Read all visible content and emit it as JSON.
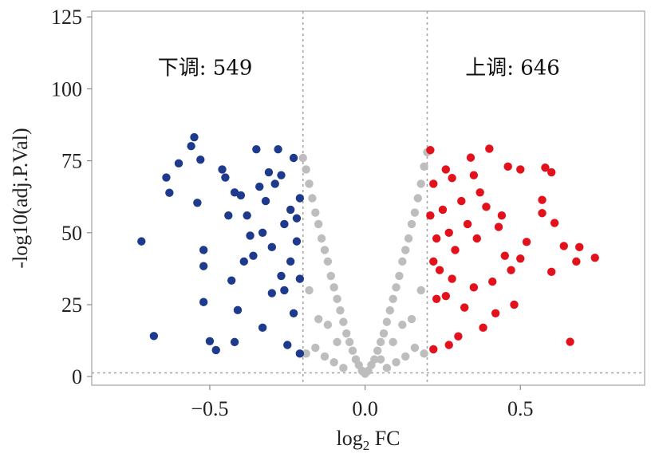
{
  "chart_data": {
    "type": "scatter",
    "title": "",
    "xlabel": {
      "prefix": "log",
      "subscript": "2",
      "suffix": " FC"
    },
    "ylabel": "-log10(adj.P.Val)",
    "xlim": [
      -0.88,
      0.9
    ],
    "ylim": [
      -3,
      127
    ],
    "x_ticks": [
      {
        "value": -0.5,
        "label": "−0.5"
      },
      {
        "value": 0.0,
        "label": "0.0"
      },
      {
        "value": 0.5,
        "label": "0.5"
      }
    ],
    "y_ticks": [
      {
        "value": 0,
        "label": "0"
      },
      {
        "value": 25,
        "label": "25"
      },
      {
        "value": 50,
        "label": "50"
      },
      {
        "value": 75,
        "label": "75"
      },
      {
        "value": 100,
        "label": "100"
      },
      {
        "value": 125,
        "label": "125"
      }
    ],
    "thresholds": {
      "x": [
        -0.2,
        0.2
      ],
      "y": 1.3
    },
    "grid": false,
    "legend": "none",
    "annotations": [
      {
        "text": "下调: 549",
        "x": -0.515,
        "y": 105
      },
      {
        "text": "上调: 646",
        "x": 0.475,
        "y": 105
      }
    ],
    "series": [
      {
        "name": "下调",
        "count": 549,
        "color": "#1d3a8c",
        "points": [
          [
            -0.55,
            83.2
          ],
          [
            -0.72,
            47.0
          ],
          [
            -0.68,
            14.1
          ],
          [
            -0.64,
            69.2
          ],
          [
            -0.63,
            63.9
          ],
          [
            -0.6,
            74.1
          ],
          [
            -0.56,
            80.1
          ],
          [
            -0.54,
            60.4
          ],
          [
            -0.53,
            75.4
          ],
          [
            -0.52,
            44.0
          ],
          [
            -0.52,
            38.4
          ],
          [
            -0.52,
            25.9
          ],
          [
            -0.5,
            12.3
          ],
          [
            -0.48,
            9.2
          ],
          [
            -0.45,
            69.2
          ],
          [
            -0.43,
            33.4
          ],
          [
            -0.42,
            64.0
          ],
          [
            -0.41,
            23.1
          ],
          [
            -0.42,
            12.0
          ],
          [
            -0.38,
            56.0
          ],
          [
            -0.37,
            49.0
          ],
          [
            -0.36,
            42.0
          ],
          [
            -0.35,
            79.0
          ],
          [
            -0.33,
            17.0
          ],
          [
            -0.32,
            61.0
          ],
          [
            -0.31,
            71.0
          ],
          [
            -0.3,
            29.0
          ],
          [
            -0.29,
            67.0
          ],
          [
            -0.28,
            79.0
          ],
          [
            -0.27,
            35.0
          ],
          [
            -0.26,
            53.0
          ],
          [
            -0.25,
            11.0
          ],
          [
            -0.24,
            58.0
          ],
          [
            -0.23,
            76.0
          ],
          [
            -0.23,
            22.0
          ],
          [
            -0.22,
            47.0
          ],
          [
            -0.21,
            62.0
          ],
          [
            -0.21,
            8.0
          ],
          [
            -0.46,
            72.0
          ],
          [
            -0.44,
            56.0
          ],
          [
            -0.4,
            63.0
          ],
          [
            -0.39,
            40.0
          ],
          [
            -0.34,
            66.0
          ],
          [
            -0.3,
            45.0
          ],
          [
            -0.27,
            70.0
          ],
          [
            -0.26,
            30.0
          ],
          [
            -0.24,
            40.0
          ],
          [
            -0.22,
            55.0
          ],
          [
            -0.21,
            34.0
          ],
          [
            -0.33,
            50.0
          ]
        ]
      },
      {
        "name": "上调",
        "count": 646,
        "color": "#e3111b",
        "points": [
          [
            0.21,
            78.7
          ],
          [
            0.34,
            76.1
          ],
          [
            0.4,
            79.2
          ],
          [
            0.46,
            73.0
          ],
          [
            0.5,
            72.0
          ],
          [
            0.58,
            72.6
          ],
          [
            0.6,
            71.0
          ],
          [
            0.57,
            61.4
          ],
          [
            0.61,
            53.4
          ],
          [
            0.57,
            56.8
          ],
          [
            0.64,
            45.4
          ],
          [
            0.68,
            40.0
          ],
          [
            0.74,
            41.3
          ],
          [
            0.69,
            45.0
          ],
          [
            0.6,
            36.4
          ],
          [
            0.52,
            46.8
          ],
          [
            0.5,
            41.0
          ],
          [
            0.47,
            37.0
          ],
          [
            0.48,
            25.0
          ],
          [
            0.42,
            22.0
          ],
          [
            0.38,
            17.0
          ],
          [
            0.35,
            31.0
          ],
          [
            0.66,
            12.1
          ],
          [
            0.27,
            11.0
          ],
          [
            0.22,
            9.5
          ],
          [
            0.3,
            14.0
          ],
          [
            0.33,
            53.0
          ],
          [
            0.37,
            64.0
          ],
          [
            0.28,
            69.0
          ],
          [
            0.25,
            58.0
          ],
          [
            0.23,
            48.0
          ],
          [
            0.24,
            37.0
          ],
          [
            0.26,
            28.0
          ],
          [
            0.29,
            44.0
          ],
          [
            0.31,
            61.0
          ],
          [
            0.36,
            48.0
          ],
          [
            0.39,
            59.0
          ],
          [
            0.43,
            52.0
          ],
          [
            0.45,
            42.0
          ],
          [
            0.22,
            67.0
          ],
          [
            0.26,
            72.0
          ],
          [
            0.21,
            56.0
          ],
          [
            0.23,
            27.0
          ],
          [
            0.28,
            34.0
          ],
          [
            0.32,
            24.0
          ],
          [
            0.41,
            33.0
          ],
          [
            0.44,
            56.0
          ],
          [
            0.35,
            70.0
          ],
          [
            0.22,
            40.0
          ],
          [
            0.27,
            50.0
          ]
        ]
      },
      {
        "name": "",
        "color": "#bdbdbd",
        "points": [
          [
            -0.2,
            76.0
          ],
          [
            -0.19,
            72.0
          ],
          [
            -0.18,
            67.0
          ],
          [
            -0.17,
            62.0
          ],
          [
            -0.16,
            57.0
          ],
          [
            -0.15,
            53.0
          ],
          [
            -0.14,
            48.0
          ],
          [
            -0.13,
            44.0
          ],
          [
            -0.12,
            40.0
          ],
          [
            -0.11,
            35.0
          ],
          [
            -0.1,
            31.0
          ],
          [
            -0.09,
            27.0
          ],
          [
            -0.08,
            23.0
          ],
          [
            -0.07,
            19.0
          ],
          [
            -0.06,
            15.0
          ],
          [
            -0.05,
            12.0
          ],
          [
            -0.04,
            9.0
          ],
          [
            -0.03,
            6.0
          ],
          [
            -0.02,
            4.0
          ],
          [
            -0.01,
            2.0
          ],
          [
            0.0,
            1.0
          ],
          [
            0.01,
            2.0
          ],
          [
            0.02,
            4.0
          ],
          [
            0.03,
            6.0
          ],
          [
            0.04,
            9.0
          ],
          [
            0.05,
            12.0
          ],
          [
            0.06,
            15.0
          ],
          [
            0.07,
            19.0
          ],
          [
            0.08,
            23.0
          ],
          [
            0.09,
            27.0
          ],
          [
            0.1,
            31.0
          ],
          [
            0.11,
            35.0
          ],
          [
            0.12,
            40.0
          ],
          [
            0.13,
            44.0
          ],
          [
            0.14,
            48.0
          ],
          [
            0.15,
            53.0
          ],
          [
            0.16,
            57.0
          ],
          [
            0.17,
            62.0
          ],
          [
            0.18,
            67.0
          ],
          [
            0.19,
            73.0
          ],
          [
            0.2,
            78.0
          ],
          [
            -0.19,
            8.0
          ],
          [
            -0.16,
            10.0
          ],
          [
            -0.13,
            7.0
          ],
          [
            -0.1,
            5.0
          ],
          [
            -0.07,
            3.0
          ],
          [
            0.07,
            3.0
          ],
          [
            0.1,
            5.0
          ],
          [
            0.13,
            7.0
          ],
          [
            0.16,
            10.0
          ],
          [
            0.19,
            8.0
          ],
          [
            -0.18,
            30.0
          ],
          [
            -0.15,
            20.0
          ],
          [
            0.15,
            20.0
          ],
          [
            0.18,
            30.0
          ],
          [
            -0.12,
            18.0
          ],
          [
            0.12,
            18.0
          ],
          [
            -0.09,
            12.0
          ],
          [
            0.09,
            12.0
          ],
          [
            0.05,
            6.0
          ]
        ]
      }
    ]
  }
}
